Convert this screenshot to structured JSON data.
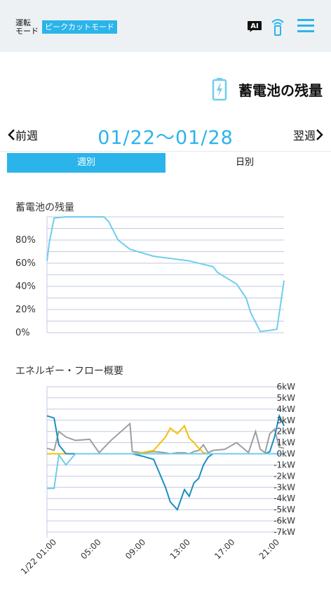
{
  "header": {
    "mode_label_line1": "運転",
    "mode_label_line2": "モード",
    "mode_value": "ピークカットモード",
    "ai_badge": "AI",
    "icons": [
      "ai-icon",
      "signal-icon",
      "menu-icon"
    ],
    "accent_color": "#2bb4ea"
  },
  "page": {
    "title": "蓄電池の残量",
    "icon": "battery-icon"
  },
  "week_nav": {
    "prev_label": "前週",
    "range": "01/22～01/28",
    "next_label": "翌週"
  },
  "tabs": [
    {
      "label": "週別",
      "active": true
    },
    {
      "label": "日別",
      "active": false
    }
  ],
  "chart_data": [
    {
      "type": "line",
      "title": "蓄電池の残量",
      "ylim": [
        0,
        100
      ],
      "yticks": [
        "0%",
        "20%",
        "40%",
        "60%",
        "80%"
      ],
      "grid": true,
      "x": [
        0,
        1,
        3,
        8,
        10,
        24,
        26,
        30,
        35,
        45,
        60,
        70,
        72,
        80,
        84,
        86,
        90,
        94,
        97,
        100
      ],
      "series": [
        {
          "color": "#6fcdee",
          "values": [
            62,
            78,
            99,
            100,
            100,
            100,
            96,
            80,
            72,
            66,
            62,
            57,
            52,
            42,
            30,
            17,
            1,
            2,
            3,
            45
          ]
        }
      ]
    },
    {
      "type": "line",
      "title": "エネルギー・フロー概要",
      "ylim": [
        -7,
        6
      ],
      "yticks": [
        "6kW",
        "5kW",
        "4kW",
        "3kW",
        "2kW",
        "1kW",
        "0kW",
        "-1kW",
        "-2kW",
        "-3kW",
        "-4kW",
        "-5kW",
        "-6kW",
        "-7kW"
      ],
      "xticks": [
        "1/22 01:00",
        "05:00",
        "09:00",
        "13:00",
        "17:00",
        "21:00"
      ],
      "grid": true,
      "x": [
        0,
        3,
        5,
        8,
        12,
        18,
        22,
        27,
        35,
        36,
        40,
        45,
        50,
        52,
        55,
        58,
        60,
        62,
        64,
        66,
        68,
        70,
        75,
        80,
        85,
        88,
        90,
        92,
        94,
        96,
        98,
        100
      ],
      "series": [
        {
          "color": "#9e9e9e",
          "values": [
            0.5,
            0.3,
            2.0,
            1.5,
            1.2,
            1.3,
            0.1,
            1.2,
            2.7,
            0.2,
            0.1,
            0.2,
            0.1,
            0.0,
            0.1,
            0.1,
            0.0,
            0.2,
            0.3,
            0.8,
            0.1,
            0.3,
            0.4,
            1.0,
            0.1,
            2.0,
            0.4,
            0.1,
            1.8,
            2.2,
            0.6,
            0.5
          ]
        },
        {
          "color": "#f5c000",
          "values": [
            0.0,
            0.0,
            0.0,
            0.0,
            0.0,
            0.0,
            0.0,
            0.0,
            0.0,
            0.0,
            0.1,
            0.3,
            1.5,
            2.3,
            1.8,
            2.5,
            1.4,
            1.0,
            0.5,
            0.1,
            0.0,
            0.0,
            0.0,
            0.0,
            0.0,
            0.0,
            0.0,
            0.0,
            0.0,
            0.0,
            0.0,
            0.0
          ]
        },
        {
          "color": "#1a8fc0",
          "values": [
            3.4,
            3.2,
            0.8,
            0.0,
            0.0,
            0.0,
            0.0,
            0.0,
            0.0,
            0.0,
            -0.2,
            -0.5,
            -3.0,
            -4.3,
            -5.0,
            -3.2,
            -3.8,
            -2.6,
            -2.2,
            -1.0,
            -0.3,
            0.0,
            0.0,
            0.0,
            0.0,
            0.0,
            0.0,
            0.0,
            0.2,
            1.5,
            3.4,
            2.5
          ]
        },
        {
          "color": "#6fcdee",
          "values": [
            -3.1,
            -3.1,
            -0.1,
            -1.0,
            0.0,
            0.0,
            0.0,
            0.0,
            0.0,
            0.0,
            0.0,
            0.0,
            0.0,
            0.0,
            0.0,
            0.0,
            0.0,
            0.0,
            0.0,
            0.0,
            0.0,
            0.0,
            0.0,
            0.0,
            0.0,
            0.0,
            0.0,
            0.0,
            0.0,
            0.0,
            0.0,
            0.0
          ]
        }
      ]
    }
  ]
}
